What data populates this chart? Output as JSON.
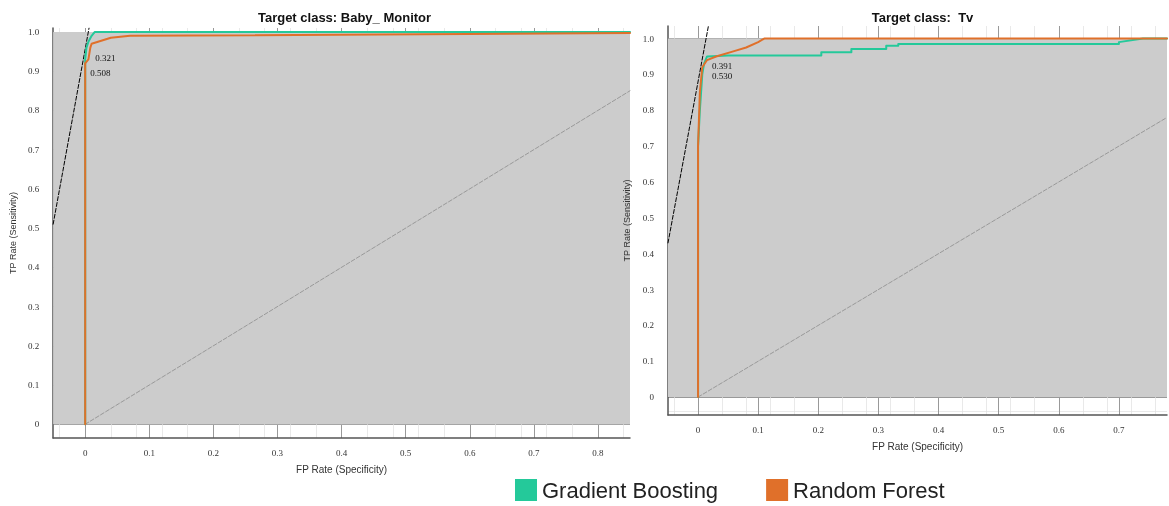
{
  "chart_data": [
    {
      "type": "line",
      "title": "Target class: Baby_ Monitor",
      "xlabel": "FP Rate (Specificity)",
      "ylabel": "TP Rate (Sensitivity)",
      "xlim": [
        -0.05,
        0.85
      ],
      "ylim": [
        -0.035,
        1.01
      ],
      "xticks": [
        0,
        0.1,
        0.2,
        0.3,
        0.4,
        0.5,
        0.6,
        0.7,
        0.8
      ],
      "yticks": [
        0,
        0.1,
        0.2,
        0.3,
        0.4,
        0.5,
        0.6,
        0.7,
        0.8,
        0.9,
        {
          "value": 1,
          "label": "1.0"
        }
      ],
      "grid": true,
      "legend": false,
      "line_style": "solid",
      "bands": [
        {
          "axis": "y",
          "from": 0,
          "to": 1,
          "color": "#cccccc"
        }
      ],
      "annotations": [
        {
          "text": "0.321",
          "x": 0.008,
          "y": 0.96
        },
        {
          "text": "0.508",
          "x": 0,
          "y": 0.92
        }
      ],
      "series": [
        {
          "color": "#24c99a",
          "x": [
            0,
            0,
            0.002,
            0.005,
            0.01,
            0.015,
            0.85
          ],
          "values": [
            0,
            0.93,
            0.96,
            0.975,
            0.99,
            1.0,
            1.0
          ]
        },
        {
          "color": "#e0702a",
          "x": [
            0,
            0,
            0.005,
            0.008,
            0.01,
            0.02,
            0.04,
            0.07,
            0.85
          ],
          "values": [
            0,
            0.92,
            0.93,
            0.96,
            0.97,
            0.975,
            0.985,
            0.99,
            0.997
          ]
        },
        {
          "type": "line",
          "color": "#999999",
          "line_style": "dashed",
          "marker": "none",
          "x": [
            0,
            0.85
          ],
          "values": [
            0,
            0.85
          ]
        },
        {
          "type": "line",
          "color": "#000000",
          "line_style": "dashed",
          "marker": "none",
          "x": [
            -0.05,
            0.006
          ],
          "values": [
            0.51,
            1.01
          ]
        }
      ]
    },
    {
      "type": "line",
      "title": "Target class:  Tv",
      "xlabel": "FP Rate (Specificity)",
      "ylabel": "TP Rate (Sensitivity)",
      "xlim": [
        -0.05,
        0.78
      ],
      "ylim": [
        -0.05,
        1.035
      ],
      "xticks": [
        0,
        0.1,
        0.2,
        0.3,
        0.4,
        0.5,
        0.6,
        0.7
      ],
      "yticks": [
        0,
        0.1,
        0.2,
        0.3,
        0.4,
        0.5,
        0.6,
        0.7,
        0.8,
        0.9,
        {
          "value": 1,
          "label": "1.0"
        }
      ],
      "grid": true,
      "legend": "bottom",
      "line_style": "solid",
      "bands": [
        {
          "axis": "y",
          "from": 0,
          "to": 1,
          "color": "#cccccc"
        }
      ],
      "annotations": [
        {
          "text": "0.391",
          "x": 0.015,
          "y": 0.95
        },
        {
          "text": "0.530",
          "x": 0.015,
          "y": 0.94
        }
      ],
      "series": [
        {
          "name": "Gradient Boosting",
          "color": "#24c99a",
          "x": [
            0,
            0,
            0.003,
            0.007,
            0.01,
            0.015,
            0.05,
            0.205,
            0.205,
            0.255,
            0.255,
            0.313,
            0.313,
            0.333,
            0.333,
            0.7,
            0.7,
            0.74,
            0.78
          ],
          "values": [
            0,
            0.7,
            0.8,
            0.9,
            0.93,
            0.95,
            0.953,
            0.953,
            0.962,
            0.962,
            0.971,
            0.971,
            0.98,
            0.98,
            0.985,
            0.985,
            0.99,
            1.0,
            1.0
          ]
        },
        {
          "name": "Random Forest",
          "color": "#e0702a",
          "x": [
            0,
            0,
            0.003,
            0.007,
            0.015,
            0.03,
            0.06,
            0.08,
            0.1,
            0.11,
            0.78
          ],
          "values": [
            0,
            0.7,
            0.85,
            0.92,
            0.94,
            0.95,
            0.965,
            0.975,
            0.99,
            1.0,
            1.0
          ]
        },
        {
          "type": "line",
          "color": "#999999",
          "line_style": "dashed",
          "marker": "none",
          "x": [
            0,
            0.78
          ],
          "values": [
            0,
            0.78
          ]
        },
        {
          "type": "line",
          "color": "#000000",
          "line_style": "dashed",
          "marker": "none",
          "x": [
            -0.05,
            0.017
          ],
          "values": [
            0.43,
            1.033
          ]
        }
      ]
    }
  ]
}
